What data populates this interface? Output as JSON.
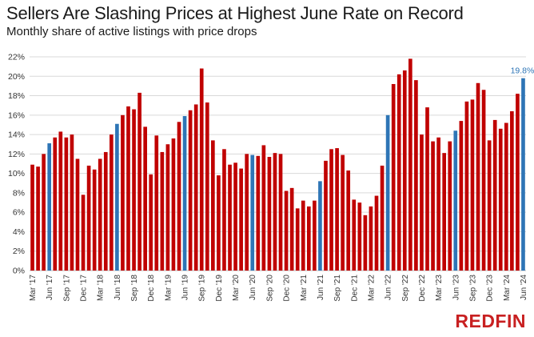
{
  "header": {
    "title": "Sellers Are Slashing Prices at Highest June Rate on Record",
    "subtitle": "Monthly share of active listings with price drops"
  },
  "brand": {
    "name": "REDFIN",
    "color": "#c82021"
  },
  "colors": {
    "default_bar": "#c00000",
    "june_bar": "#2e75b6",
    "highlight_label": "#2e75b6",
    "grid": "#d9d9d9",
    "text": "#333333"
  },
  "chart_data": {
    "type": "bar",
    "title": "Sellers Are Slashing Prices at Highest June Rate on Record",
    "subtitle": "Monthly share of active listings with price drops",
    "xlabel": "",
    "ylabel": "",
    "ylim": [
      0,
      22
    ],
    "y_ticks": [
      0,
      2,
      4,
      6,
      8,
      10,
      12,
      14,
      16,
      18,
      20,
      22
    ],
    "y_tick_labels": [
      "0%",
      "2%",
      "4%",
      "6%",
      "8%",
      "10%",
      "12%",
      "14%",
      "16%",
      "18%",
      "20%",
      "22%"
    ],
    "grid": true,
    "start_month": "2017-03",
    "categories": [
      "Mar '17",
      "Apr '17",
      "May '17",
      "Jun '17",
      "Jul '17",
      "Aug '17",
      "Sep '17",
      "Oct '17",
      "Nov '17",
      "Dec '17",
      "Jan '18",
      "Feb '18",
      "Mar '18",
      "Apr '18",
      "May '18",
      "Jun '18",
      "Jul '18",
      "Aug '18",
      "Sep '18",
      "Oct '18",
      "Nov '18",
      "Dec '18",
      "Jan '19",
      "Feb '19",
      "Mar '19",
      "Apr '19",
      "May '19",
      "Jun '19",
      "Jul '19",
      "Aug '19",
      "Sep '19",
      "Oct '19",
      "Nov '19",
      "Dec '19",
      "Jan '20",
      "Feb '20",
      "Mar '20",
      "Apr '20",
      "May '20",
      "Jun '20",
      "Jul '20",
      "Aug '20",
      "Sep '20",
      "Oct '20",
      "Nov '20",
      "Dec '20",
      "Jan '21",
      "Feb '21",
      "Mar '21",
      "Apr '21",
      "May '21",
      "Jun '21",
      "Jul '21",
      "Aug '21",
      "Sep '21",
      "Oct '21",
      "Nov '21",
      "Dec '21",
      "Jan '22",
      "Feb '22",
      "Mar '22",
      "Apr '22",
      "May '22",
      "Jun '22",
      "Jul '22",
      "Aug '22",
      "Sep '22",
      "Oct '22",
      "Nov '22",
      "Dec '22",
      "Jan '23",
      "Feb '23",
      "Mar '23",
      "Apr '23",
      "May '23",
      "Jun '23",
      "Jul '23",
      "Aug '23",
      "Sep '23",
      "Oct '23",
      "Nov '23",
      "Dec '23",
      "Jan '24",
      "Feb '24",
      "Mar '24",
      "Apr '24",
      "May '24",
      "Jun '24"
    ],
    "values": [
      10.9,
      10.7,
      12.0,
      13.1,
      13.7,
      14.3,
      13.7,
      14.0,
      11.5,
      7.8,
      10.8,
      10.4,
      11.5,
      12.2,
      14.0,
      15.1,
      16.0,
      16.9,
      16.6,
      18.3,
      14.8,
      9.9,
      13.9,
      12.2,
      13.0,
      13.6,
      15.3,
      15.9,
      16.5,
      17.1,
      20.8,
      17.3,
      13.4,
      9.8,
      12.5,
      10.9,
      11.1,
      10.5,
      12.0,
      11.9,
      11.8,
      12.9,
      11.7,
      12.1,
      12.0,
      8.2,
      8.5,
      6.4,
      7.2,
      6.6,
      7.2,
      9.2,
      11.3,
      12.5,
      12.6,
      11.9,
      10.3,
      7.3,
      7.0,
      5.7,
      6.6,
      7.7,
      10.8,
      16.0,
      19.2,
      20.2,
      20.6,
      21.8,
      19.6,
      14.0,
      16.8,
      13.3,
      13.7,
      12.1,
      13.3,
      14.4,
      15.4,
      17.4,
      17.6,
      19.3,
      18.6,
      13.4,
      15.5,
      14.6,
      15.2,
      16.4,
      18.2,
      19.8
    ],
    "highlight_series_name": "June",
    "highlight_color_rule": "June bars are blue; all other months are red",
    "x_tick_labels": [
      "Mar '17",
      "Jun '17",
      "Sep '17",
      "Dec '17",
      "Mar '18",
      "Jun '18",
      "Sep '18",
      "Dec '18",
      "Mar '19",
      "Jun '19",
      "Sep '19",
      "Dec '19",
      "Mar '20",
      "Jun '20",
      "Sep '20",
      "Dec '20",
      "Mar '21",
      "Jun '21",
      "Sep '21",
      "Dec '21",
      "Mar '22",
      "Jun '22",
      "Sep '22",
      "Dec '22",
      "Mar '23",
      "Jun '23",
      "Sep '23",
      "Dec '23",
      "Mar '24",
      "Jun '24"
    ],
    "annotations": [
      {
        "category": "Jun '24",
        "text": "19.8%"
      }
    ]
  }
}
